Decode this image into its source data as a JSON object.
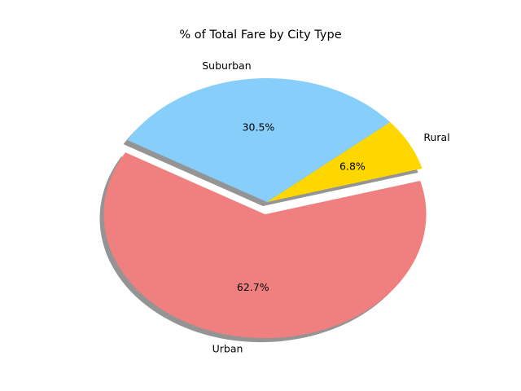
{
  "chart_data": {
    "type": "pie",
    "title": "% of Total Fare by City Type",
    "start_angle_deg": 150,
    "direction": "counterclockwise",
    "shadow": true,
    "slices": [
      {
        "label": "Urban",
        "value": 62.7,
        "pct_label": "62.7%",
        "color": "#F08080",
        "explode": 0.1
      },
      {
        "label": "Rural",
        "value": 6.8,
        "pct_label": "6.8%",
        "color": "#FFD700",
        "explode": 0
      },
      {
        "label": "Suburban",
        "value": 30.5,
        "pct_label": "30.5%",
        "color": "#87CEFA",
        "explode": 0
      }
    ]
  }
}
